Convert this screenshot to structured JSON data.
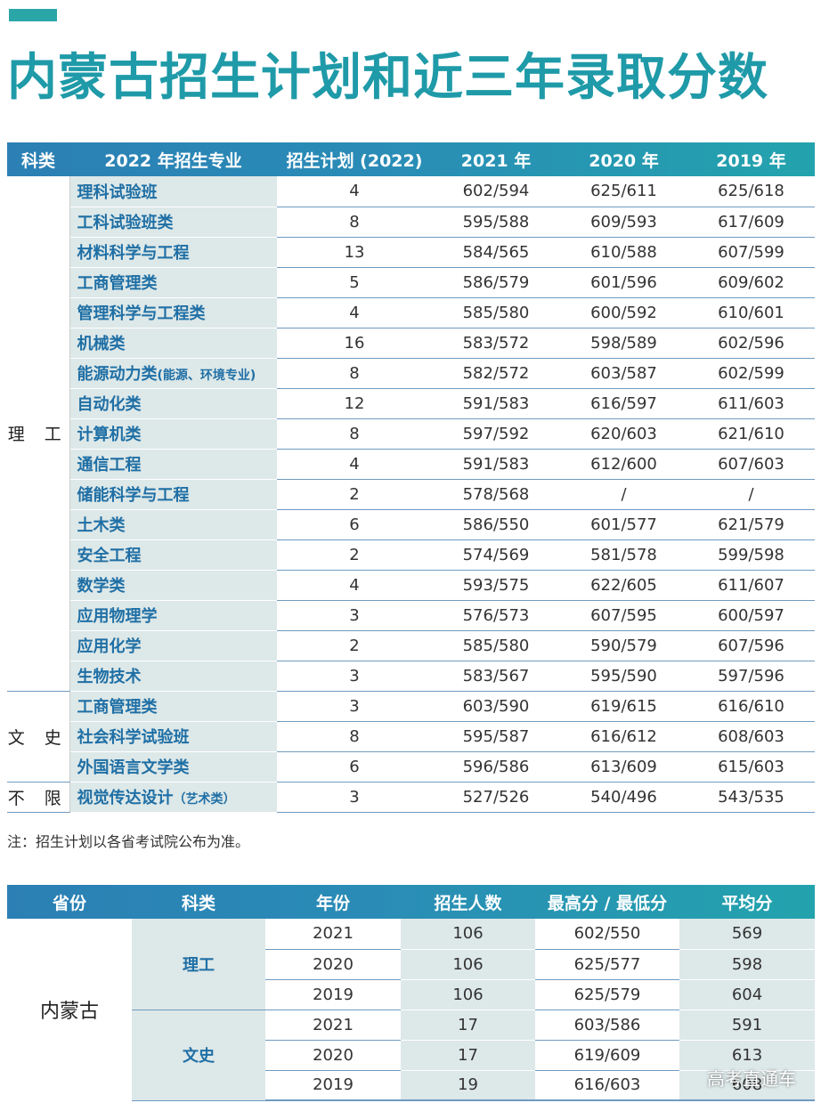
{
  "title": "内蒙古招生计划和近三年录取分数",
  "plan_table": {
    "headers": [
      "科类",
      "2022 年招生专业",
      "招生计划 (2022)",
      "2021 年",
      "2020 年",
      "2019 年"
    ],
    "groups": [
      {
        "category": "理 工",
        "rows": [
          {
            "major": "理科试验班",
            "plan": "4",
            "y2021": "602/594",
            "y2020": "625/611",
            "y2019": "625/618"
          },
          {
            "major": "工科试验班类",
            "plan": "8",
            "y2021": "595/588",
            "y2020": "609/593",
            "y2019": "617/609"
          },
          {
            "major": "材料科学与工程",
            "plan": "13",
            "y2021": "584/565",
            "y2020": "610/588",
            "y2019": "607/599"
          },
          {
            "major": "工商管理类",
            "plan": "5",
            "y2021": "586/579",
            "y2020": "601/596",
            "y2019": "609/602"
          },
          {
            "major": "管理科学与工程类",
            "plan": "4",
            "y2021": "585/580",
            "y2020": "600/592",
            "y2019": "610/601"
          },
          {
            "major": "机械类",
            "plan": "16",
            "y2021": "583/572",
            "y2020": "598/589",
            "y2019": "602/596"
          },
          {
            "major": "能源动力类",
            "note": "(能源、环境专业)",
            "plan": "8",
            "y2021": "582/572",
            "y2020": "603/587",
            "y2019": "602/599"
          },
          {
            "major": "自动化类",
            "plan": "12",
            "y2021": "591/583",
            "y2020": "616/597",
            "y2019": "611/603"
          },
          {
            "major": "计算机类",
            "plan": "8",
            "y2021": "597/592",
            "y2020": "620/603",
            "y2019": "621/610"
          },
          {
            "major": "通信工程",
            "plan": "4",
            "y2021": "591/583",
            "y2020": "612/600",
            "y2019": "607/603"
          },
          {
            "major": "储能科学与工程",
            "plan": "2",
            "y2021": "578/568",
            "y2020": "/",
            "y2019": "/"
          },
          {
            "major": "土木类",
            "plan": "6",
            "y2021": "586/550",
            "y2020": "601/577",
            "y2019": "621/579"
          },
          {
            "major": "安全工程",
            "plan": "2",
            "y2021": "574/569",
            "y2020": "581/578",
            "y2019": "599/598"
          },
          {
            "major": "数学类",
            "plan": "4",
            "y2021": "593/575",
            "y2020": "622/605",
            "y2019": "611/607"
          },
          {
            "major": "应用物理学",
            "plan": "3",
            "y2021": "576/573",
            "y2020": "607/595",
            "y2019": "600/597"
          },
          {
            "major": "应用化学",
            "plan": "2",
            "y2021": "585/580",
            "y2020": "590/579",
            "y2019": "607/596"
          },
          {
            "major": "生物技术",
            "plan": "3",
            "y2021": "583/567",
            "y2020": "595/590",
            "y2019": "597/596"
          }
        ]
      },
      {
        "category": "文 史",
        "rows": [
          {
            "major": "工商管理类",
            "plan": "3",
            "y2021": "603/590",
            "y2020": "619/615",
            "y2019": "616/610"
          },
          {
            "major": "社会科学试验班",
            "plan": "8",
            "y2021": "595/587",
            "y2020": "616/612",
            "y2019": "608/603"
          },
          {
            "major": "外国语言文学类",
            "plan": "6",
            "y2021": "596/586",
            "y2020": "613/609",
            "y2019": "615/603"
          }
        ]
      },
      {
        "category": "不 限",
        "rows": [
          {
            "major": "视觉传达设计",
            "note": "（艺术类）",
            "plan": "3",
            "y2021": "527/526",
            "y2020": "540/496",
            "y2019": "543/535"
          }
        ]
      }
    ]
  },
  "footnote": "注：招生计划以各省考试院公布为准。",
  "summary_table": {
    "headers": [
      "省份",
      "科类",
      "年份",
      "招生人数",
      "最高分 / 最低分",
      "平均分"
    ],
    "province": "内蒙古",
    "groups": [
      {
        "category": "理工",
        "rows": [
          {
            "year": "2021",
            "count": "106",
            "range": "602/550",
            "avg": "569"
          },
          {
            "year": "2020",
            "count": "106",
            "range": "625/577",
            "avg": "598"
          },
          {
            "year": "2019",
            "count": "106",
            "range": "625/579",
            "avg": "604"
          }
        ]
      },
      {
        "category": "文史",
        "rows": [
          {
            "year": "2021",
            "count": "17",
            "range": "603/586",
            "avg": "591"
          },
          {
            "year": "2020",
            "count": "17",
            "range": "619/609",
            "avg": "613"
          },
          {
            "year": "2019",
            "count": "19",
            "range": "616/603",
            "avg": "608"
          }
        ]
      }
    ]
  },
  "watermark": "高考直通车",
  "colors": {
    "title": "#1f9aa8",
    "accent": "#2aa6a9",
    "header_start": "#2b7fb4",
    "header_end": "#23a3ad",
    "major_text": "#1f6fa5",
    "shade": "#dde8e8"
  }
}
